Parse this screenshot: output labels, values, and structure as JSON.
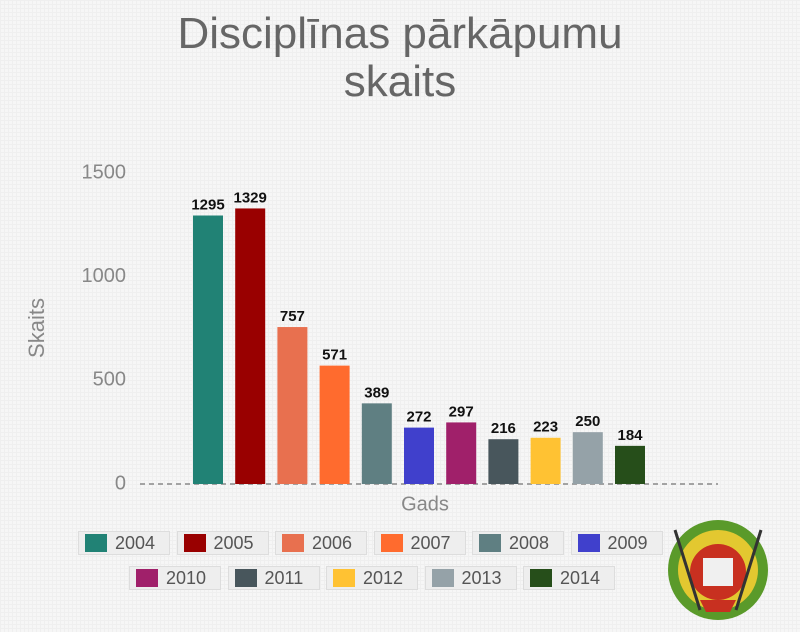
{
  "chart_data": {
    "type": "bar",
    "title": "Disciplīnas pārkāpumu skaits",
    "y_label": "Skaits",
    "x_label": "Gads",
    "categories": [
      null
    ],
    "ylim": [
      0,
      1500
    ],
    "yticks": [
      0,
      500,
      1000,
      1500
    ],
    "grid": false,
    "series": [
      {
        "name": "2004",
        "color": "#218275",
        "values": [
          1295
        ]
      },
      {
        "name": "2005",
        "color": "#990000",
        "values": [
          1329
        ]
      },
      {
        "name": "2006",
        "color": "#e8704f",
        "values": [
          757
        ]
      },
      {
        "name": "2007",
        "color": "#ff6b2e",
        "values": [
          571
        ]
      },
      {
        "name": "2008",
        "color": "#5f7f82",
        "values": [
          389
        ]
      },
      {
        "name": "2009",
        "color": "#4040cc",
        "values": [
          272
        ]
      },
      {
        "name": "2010",
        "color": "#a0206a",
        "values": [
          297
        ]
      },
      {
        "name": "2011",
        "color": "#48565c",
        "values": [
          216
        ]
      },
      {
        "name": "2012",
        "color": "#ffc233",
        "values": [
          223
        ]
      },
      {
        "name": "2013",
        "color": "#95a2a8",
        "values": [
          250
        ]
      },
      {
        "name": "2014",
        "color": "#264e1a",
        "values": [
          184
        ]
      }
    ]
  }
}
